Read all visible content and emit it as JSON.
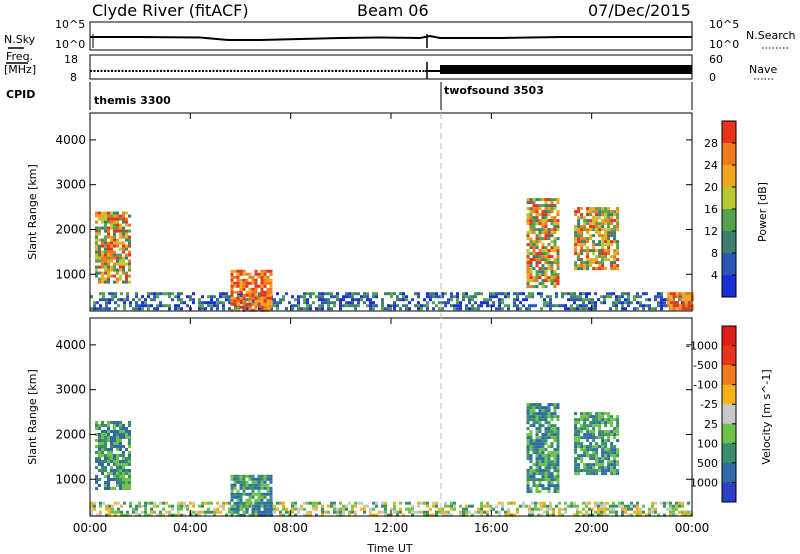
{
  "header": {
    "station": "Clyde River (fitACF)",
    "beam": "Beam 06",
    "date": "07/Dec/2015"
  },
  "top_panels": {
    "nsky_label": "N.Sky",
    "nsearch_label": "N.Search",
    "freq_label_line1": "Freq.",
    "freq_label_line2": "[MHz]",
    "nave_label": "Nave",
    "cpid_label": "CPID",
    "noise_ticks_left": [
      "10^5",
      "10^0"
    ],
    "noise_ticks_right": [
      "10^5",
      "10^0"
    ],
    "freq_ticks_left": [
      "18",
      "8"
    ],
    "nave_ticks_right": [
      "60",
      "0"
    ],
    "cpid_modes": [
      {
        "name": "themis 3300",
        "start_ut": 0.0
      },
      {
        "name": "twofsound 3503",
        "start_ut": 14.0
      }
    ]
  },
  "chart_data": [
    {
      "type": "heatmap",
      "panel": "power",
      "ylabel": "Slant Range [km]",
      "xlim": [
        0,
        24
      ],
      "ylim": [
        180,
        4600
      ],
      "yticks": [
        "1000",
        "2000",
        "3000",
        "4000"
      ],
      "xticks": [
        "00:00",
        "04:00",
        "08:00",
        "12:00",
        "16:00",
        "20:00",
        "00:00"
      ],
      "colorbar": {
        "label": "Power [dB]",
        "ticks": [
          "4",
          "8",
          "12",
          "16",
          "20",
          "24",
          "28"
        ],
        "colors": [
          "#1b2ed8",
          "#2c55b8",
          "#3b7f6c",
          "#52a24e",
          "#b7c832",
          "#f4a51f",
          "#f07a1c",
          "#e8341c"
        ]
      },
      "echo_regions": [
        {
          "t0": 0.0,
          "t1": 24.0,
          "r0": 200,
          "r1": 600,
          "value": "8-20 dB"
        },
        {
          "t0": 0.2,
          "t1": 1.6,
          "r0": 800,
          "r1": 2400,
          "value": "12-28 dB"
        },
        {
          "t0": 5.6,
          "t1": 7.2,
          "r0": 200,
          "r1": 1100,
          "value": "20-28 dB"
        },
        {
          "t0": 17.4,
          "t1": 18.6,
          "r0": 700,
          "r1": 2700,
          "value": "12-28 dB"
        },
        {
          "t0": 19.3,
          "t1": 21.0,
          "r0": 1100,
          "r1": 2500,
          "value": "12-28 dB"
        },
        {
          "t0": 23.0,
          "t1": 24.0,
          "r0": 200,
          "r1": 600,
          "value": "16-28 dB"
        }
      ]
    },
    {
      "type": "heatmap",
      "panel": "velocity",
      "ylabel": "Slant Range [km]",
      "xlabel": "Time UT",
      "xlim": [
        0,
        24
      ],
      "ylim": [
        180,
        4600
      ],
      "yticks": [
        "1000",
        "2000",
        "3000",
        "4000"
      ],
      "xticks": [
        "00:00",
        "04:00",
        "08:00",
        "12:00",
        "16:00",
        "20:00",
        "00:00"
      ],
      "colorbar": {
        "label": "Velocity [m s^-1]",
        "ticks": [
          "1000",
          "500",
          "100",
          "25",
          "-25",
          "-100",
          "-500",
          "-1000"
        ],
        "colors": [
          "#2c3fc7",
          "#2f6ba9",
          "#3a8f6a",
          "#6dc24a",
          "#c8c8c8",
          "#f2b219",
          "#f07a1c",
          "#e8341c",
          "#e21c16"
        ]
      },
      "echo_regions": [
        {
          "t0": 0.0,
          "t1": 24.0,
          "r0": 200,
          "r1": 500,
          "value": "-100 to 100 m/s"
        },
        {
          "t0": 0.2,
          "t1": 1.6,
          "r0": 800,
          "r1": 2300,
          "value": "100-500 m/s"
        },
        {
          "t0": 5.6,
          "t1": 7.2,
          "r0": 200,
          "r1": 1100,
          "value": "100-500 m/s"
        },
        {
          "t0": 17.4,
          "t1": 18.6,
          "r0": 700,
          "r1": 2700,
          "value": "100-500 m/s"
        },
        {
          "t0": 19.3,
          "t1": 21.0,
          "r0": 1100,
          "r1": 2500,
          "value": "100-500 m/s"
        }
      ]
    }
  ]
}
